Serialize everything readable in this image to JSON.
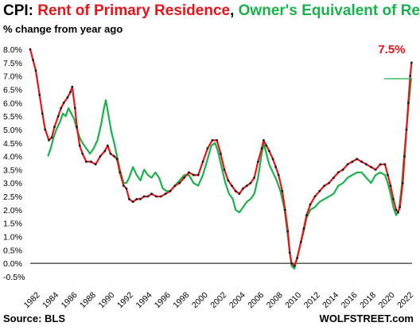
{
  "chart_data": {
    "type": "line",
    "title_parts": {
      "prefix": "CPI: ",
      "series1": "Rent of Primary Residence",
      "sep": ", ",
      "series2": "Owner's Equivalent of Rent"
    },
    "subtitle": "% change from year ago",
    "source": "Source: BLS",
    "brand": "WOLFSTREET.com",
    "ylim": [
      -0.5,
      8.0
    ],
    "y_ticks": [
      "8.0%",
      "7.5%",
      "7.0%",
      "6.5%",
      "6.0%",
      "5.5%",
      "5.0%",
      "4.5%",
      "4.0%",
      "3.5%",
      "3.0%",
      "2.5%",
      "2.0%",
      "1.5%",
      "1.0%",
      "0.5%",
      "0.0%",
      "-0.5%"
    ],
    "xlim": [
      1982.0,
      2022.9
    ],
    "x_ticks": [
      "1982",
      "1984",
      "1986",
      "1988",
      "1990",
      "1992",
      "1994",
      "1996",
      "1998",
      "2000",
      "2002",
      "2004",
      "2006",
      "2008",
      "2010",
      "2012",
      "2014",
      "2016",
      "2018",
      "2020",
      "2022"
    ],
    "end_label": "7.5%",
    "colors": {
      "rent": "#e8141a",
      "rent_markers": "#1a1a1a",
      "oer": "#19b24b",
      "zero_line": "#000000"
    },
    "series": [
      {
        "name": "Rent of Primary Residence",
        "color": "#e8141a",
        "points": [
          [
            1982.0,
            8.0
          ],
          [
            1982.3,
            7.6
          ],
          [
            1982.6,
            7.2
          ],
          [
            1983.0,
            6.3
          ],
          [
            1983.3,
            5.6
          ],
          [
            1983.6,
            5.0
          ],
          [
            1984.0,
            4.6
          ],
          [
            1984.3,
            4.7
          ],
          [
            1984.6,
            5.1
          ],
          [
            1985.0,
            5.5
          ],
          [
            1985.3,
            5.8
          ],
          [
            1985.6,
            6.0
          ],
          [
            1986.0,
            6.2
          ],
          [
            1986.3,
            6.4
          ],
          [
            1986.5,
            6.6
          ],
          [
            1986.8,
            5.8
          ],
          [
            1987.0,
            5.1
          ],
          [
            1987.3,
            4.4
          ],
          [
            1987.6,
            4.1
          ],
          [
            1988.0,
            3.8
          ],
          [
            1988.5,
            3.8
          ],
          [
            1989.0,
            3.7
          ],
          [
            1989.5,
            4.0
          ],
          [
            1990.0,
            4.2
          ],
          [
            1990.3,
            4.4
          ],
          [
            1990.6,
            4.1
          ],
          [
            1991.0,
            4.0
          ],
          [
            1991.3,
            3.9
          ],
          [
            1991.6,
            3.4
          ],
          [
            1992.0,
            2.9
          ],
          [
            1992.3,
            2.8
          ],
          [
            1992.6,
            2.4
          ],
          [
            1993.0,
            2.3
          ],
          [
            1993.4,
            2.4
          ],
          [
            1993.8,
            2.4
          ],
          [
            1994.2,
            2.5
          ],
          [
            1994.6,
            2.5
          ],
          [
            1995.0,
            2.6
          ],
          [
            1995.5,
            2.5
          ],
          [
            1996.0,
            2.5
          ],
          [
            1996.5,
            2.6
          ],
          [
            1997.0,
            2.7
          ],
          [
            1997.5,
            2.9
          ],
          [
            1998.0,
            3.0
          ],
          [
            1998.5,
            3.2
          ],
          [
            1999.0,
            3.4
          ],
          [
            1999.5,
            3.3
          ],
          [
            2000.0,
            3.3
          ],
          [
            2000.5,
            3.8
          ],
          [
            2001.0,
            4.3
          ],
          [
            2001.5,
            4.6
          ],
          [
            2002.0,
            4.6
          ],
          [
            2002.4,
            4.1
          ],
          [
            2002.8,
            3.5
          ],
          [
            2003.2,
            3.1
          ],
          [
            2003.6,
            2.9
          ],
          [
            2004.0,
            2.7
          ],
          [
            2004.4,
            2.6
          ],
          [
            2004.8,
            2.8
          ],
          [
            2005.2,
            2.9
          ],
          [
            2005.6,
            3.0
          ],
          [
            2006.0,
            3.2
          ],
          [
            2006.4,
            3.8
          ],
          [
            2006.8,
            4.3
          ],
          [
            2007.0,
            4.6
          ],
          [
            2007.3,
            4.4
          ],
          [
            2007.6,
            4.2
          ],
          [
            2008.0,
            3.9
          ],
          [
            2008.3,
            3.6
          ],
          [
            2008.6,
            3.3
          ],
          [
            2009.0,
            2.7
          ],
          [
            2009.3,
            2.0
          ],
          [
            2009.6,
            1.2
          ],
          [
            2009.8,
            0.4
          ],
          [
            2010.0,
            0.0
          ],
          [
            2010.3,
            -0.1
          ],
          [
            2010.6,
            0.2
          ],
          [
            2011.0,
            0.8
          ],
          [
            2011.3,
            1.3
          ],
          [
            2011.6,
            1.8
          ],
          [
            2012.0,
            2.2
          ],
          [
            2012.5,
            2.5
          ],
          [
            2013.0,
            2.7
          ],
          [
            2013.5,
            2.9
          ],
          [
            2014.0,
            3.0
          ],
          [
            2014.5,
            3.2
          ],
          [
            2015.0,
            3.4
          ],
          [
            2015.5,
            3.5
          ],
          [
            2016.0,
            3.7
          ],
          [
            2016.5,
            3.8
          ],
          [
            2017.0,
            3.9
          ],
          [
            2017.5,
            3.8
          ],
          [
            2018.0,
            3.7
          ],
          [
            2018.5,
            3.6
          ],
          [
            2019.0,
            3.5
          ],
          [
            2019.5,
            3.7
          ],
          [
            2020.0,
            3.7
          ],
          [
            2020.3,
            3.3
          ],
          [
            2020.6,
            2.9
          ],
          [
            2020.9,
            2.4
          ],
          [
            2021.2,
            2.0
          ],
          [
            2021.4,
            1.9
          ],
          [
            2021.6,
            2.1
          ],
          [
            2021.9,
            3.0
          ],
          [
            2022.1,
            4.0
          ],
          [
            2022.3,
            5.0
          ],
          [
            2022.5,
            6.0
          ],
          [
            2022.7,
            7.0
          ],
          [
            2022.85,
            7.5
          ]
        ]
      },
      {
        "name": "Owner's Equivalent of Rent",
        "color": "#19b24b",
        "points": [
          [
            1983.9,
            4.0
          ],
          [
            1984.2,
            4.3
          ],
          [
            1984.5,
            4.7
          ],
          [
            1984.8,
            5.0
          ],
          [
            1985.2,
            5.3
          ],
          [
            1985.5,
            5.6
          ],
          [
            1985.8,
            5.5
          ],
          [
            1986.1,
            5.8
          ],
          [
            1986.4,
            5.6
          ],
          [
            1986.7,
            5.4
          ],
          [
            1987.0,
            5.0
          ],
          [
            1987.3,
            4.7
          ],
          [
            1987.6,
            4.5
          ],
          [
            1988.0,
            4.3
          ],
          [
            1988.4,
            4.1
          ],
          [
            1988.8,
            4.3
          ],
          [
            1989.2,
            4.6
          ],
          [
            1989.6,
            5.2
          ],
          [
            1989.9,
            5.8
          ],
          [
            1990.1,
            6.1
          ],
          [
            1990.4,
            5.5
          ],
          [
            1990.7,
            4.9
          ],
          [
            1991.0,
            4.5
          ],
          [
            1991.3,
            4.0
          ],
          [
            1991.6,
            3.5
          ],
          [
            1992.0,
            3.0
          ],
          [
            1992.3,
            3.0
          ],
          [
            1992.6,
            3.2
          ],
          [
            1993.0,
            3.6
          ],
          [
            1993.4,
            3.3
          ],
          [
            1993.8,
            3.1
          ],
          [
            1994.2,
            3.5
          ],
          [
            1994.6,
            3.3
          ],
          [
            1995.0,
            3.2
          ],
          [
            1995.4,
            3.4
          ],
          [
            1995.8,
            3.2
          ],
          [
            1996.2,
            2.8
          ],
          [
            1996.6,
            2.7
          ],
          [
            1997.0,
            2.7
          ],
          [
            1997.5,
            2.9
          ],
          [
            1998.0,
            3.1
          ],
          [
            1998.5,
            3.3
          ],
          [
            1999.0,
            3.3
          ],
          [
            1999.5,
            3.0
          ],
          [
            2000.0,
            2.9
          ],
          [
            2000.5,
            3.3
          ],
          [
            2001.0,
            3.9
          ],
          [
            2001.4,
            4.4
          ],
          [
            2001.8,
            4.5
          ],
          [
            2002.1,
            4.2
          ],
          [
            2002.5,
            3.6
          ],
          [
            2002.9,
            3.0
          ],
          [
            2003.3,
            2.6
          ],
          [
            2003.7,
            2.4
          ],
          [
            2004.0,
            2.0
          ],
          [
            2004.4,
            1.9
          ],
          [
            2004.8,
            2.1
          ],
          [
            2005.2,
            2.3
          ],
          [
            2005.6,
            2.4
          ],
          [
            2006.0,
            2.6
          ],
          [
            2006.4,
            3.2
          ],
          [
            2006.7,
            3.9
          ],
          [
            2007.0,
            4.5
          ],
          [
            2007.3,
            4.1
          ],
          [
            2007.6,
            3.7
          ],
          [
            2008.0,
            3.4
          ],
          [
            2008.4,
            3.1
          ],
          [
            2008.8,
            2.7
          ],
          [
            2009.2,
            2.1
          ],
          [
            2009.5,
            1.3
          ],
          [
            2009.8,
            0.4
          ],
          [
            2010.0,
            -0.1
          ],
          [
            2010.3,
            -0.2
          ],
          [
            2010.6,
            0.2
          ],
          [
            2011.0,
            0.8
          ],
          [
            2011.3,
            1.2
          ],
          [
            2011.6,
            1.7
          ],
          [
            2012.0,
            2.0
          ],
          [
            2012.5,
            2.1
          ],
          [
            2013.0,
            2.3
          ],
          [
            2013.5,
            2.4
          ],
          [
            2014.0,
            2.5
          ],
          [
            2014.5,
            2.6
          ],
          [
            2015.0,
            2.9
          ],
          [
            2015.5,
            3.0
          ],
          [
            2016.0,
            3.2
          ],
          [
            2016.5,
            3.3
          ],
          [
            2017.0,
            3.4
          ],
          [
            2017.5,
            3.4
          ],
          [
            2018.0,
            3.2
          ],
          [
            2018.5,
            3.0
          ],
          [
            2019.0,
            3.3
          ],
          [
            2019.5,
            3.4
          ],
          [
            2020.0,
            3.3
          ],
          [
            2020.3,
            3.0
          ],
          [
            2020.6,
            2.6
          ],
          [
            2020.9,
            2.1
          ],
          [
            2021.2,
            1.8
          ],
          [
            2021.5,
            2.0
          ],
          [
            2021.8,
            2.9
          ],
          [
            2022.0,
            3.8
          ],
          [
            2022.2,
            4.6
          ],
          [
            2022.4,
            5.4
          ],
          [
            2022.6,
            6.2
          ],
          [
            2022.8,
            6.9
          ]
        ]
      }
    ]
  }
}
